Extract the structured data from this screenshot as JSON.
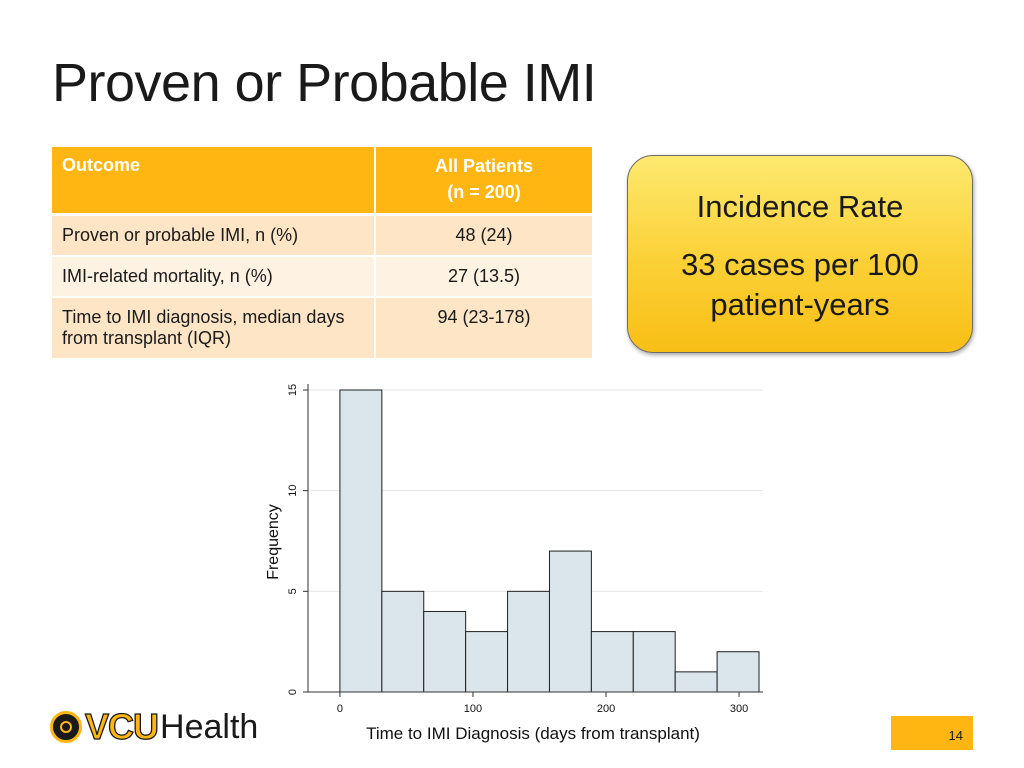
{
  "title": "Proven or Probable IMI",
  "table": {
    "headers": [
      "Outcome",
      "All Patients",
      "(n = 200)"
    ],
    "rows": [
      {
        "outcome": "Proven or probable IMI, n (%)",
        "value": "48 (24)"
      },
      {
        "outcome": "IMI-related mortality, n (%)",
        "value": "27 (13.5)"
      },
      {
        "outcome": "Time to IMI diagnosis, median days from transplant (IQR)",
        "value": "94 (23-178)"
      }
    ]
  },
  "callout": {
    "heading": "Incidence Rate",
    "value": "33 cases per 100 patient-years"
  },
  "chart_data": {
    "type": "bar",
    "title": "",
    "xlabel": "Time to IMI Diagnosis (days from transplant)",
    "ylabel": "Frequency",
    "bin_edges": [
      0,
      31.5,
      63,
      94.5,
      126,
      157.5,
      189,
      220.5,
      252,
      283.5,
      315
    ],
    "values": [
      15,
      5,
      4,
      3,
      5,
      7,
      3,
      3,
      1,
      2
    ],
    "xlim": [
      -24,
      318
    ],
    "ylim": [
      0,
      15
    ],
    "xticks": [
      0,
      100,
      200,
      300
    ],
    "yticks": [
      0,
      5,
      10,
      15
    ],
    "grid": true,
    "bar_color": "#dbe6ec",
    "edge_color": "#1f1f1f"
  },
  "footer": {
    "logo_text_vcu": "VCU",
    "logo_text_health": "Health",
    "page_number": "14"
  }
}
